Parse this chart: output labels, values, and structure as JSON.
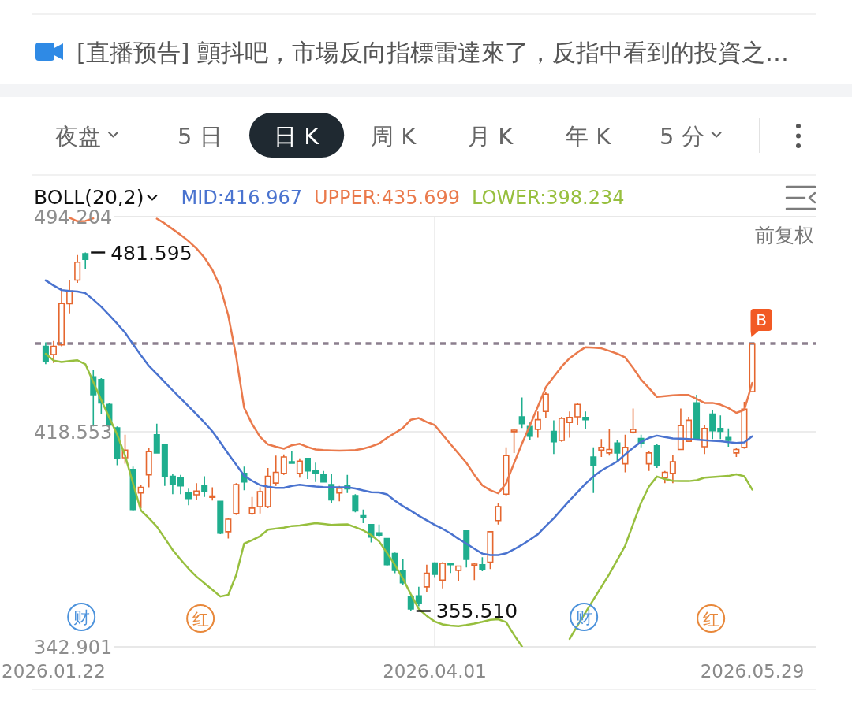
{
  "chart_data": {
    "type": "candlestick",
    "legend_title": "BOLL(20,2)",
    "legend": "top left",
    "grid": true,
    "categories": [
      null,
      "2026.01.22",
      null,
      null,
      null,
      null,
      null,
      null,
      null,
      null,
      null,
      null,
      null,
      null,
      null,
      null,
      null,
      null,
      null,
      null,
      null,
      null,
      null,
      null,
      null,
      null,
      null,
      null,
      null,
      null,
      null,
      null,
      null,
      null,
      null,
      null,
      null,
      null,
      null,
      null,
      null,
      null,
      null,
      null,
      null,
      null,
      null,
      null,
      null,
      "2026.04.01",
      null,
      null,
      null,
      null,
      null,
      null,
      null,
      null,
      null,
      null,
      null,
      null,
      null,
      null,
      null,
      null,
      null,
      null,
      null,
      null,
      null,
      null,
      null,
      null,
      null,
      null,
      null,
      null,
      null,
      null,
      null,
      null,
      null,
      null,
      null,
      null,
      null,
      null,
      null,
      "2026.05.29"
    ],
    "ohlc": [
      [
        448.6,
        450.0,
        442.3,
        443.2
      ],
      [
        445.7,
        450.5,
        442.7,
        448.6
      ],
      [
        449.1,
        469.0,
        448.6,
        463.7
      ],
      [
        463.6,
        471.9,
        460.2,
        468.0
      ],
      [
        471.9,
        480.7,
        470.9,
        478.2
      ],
      [
        481.2,
        481.595,
        475.8,
        479.2
      ],
      [
        437.9,
        440.3,
        420.4,
        431.6
      ],
      [
        436.9,
        437.4,
        424.8,
        428.7
      ],
      [
        428.2,
        428.6,
        420.4,
        420.9
      ],
      [
        419.9,
        420.4,
        406.8,
        409.2
      ],
      [
        409.4,
        417.5,
        407.3,
        412.1
      ],
      [
        405.3,
        406.3,
        390.7,
        391.2
      ],
      [
        397.0,
        400.0,
        391.7,
        399.0
      ],
      [
        403.4,
        412.9,
        399.0,
        411.6
      ],
      [
        417.5,
        421.4,
        411.1,
        411.1
      ],
      [
        414.1,
        414.1,
        399.5,
        402.9
      ],
      [
        402.9,
        403.8,
        396.6,
        400.0
      ],
      [
        402.4,
        403.4,
        396.6,
        399.5
      ],
      [
        397.0,
        398.5,
        392.7,
        395.1
      ],
      [
        396.4,
        400.5,
        394.6,
        397.7
      ],
      [
        399.5,
        402.9,
        395.6,
        397.5
      ],
      [
        395.6,
        399.0,
        394.4,
        395.9
      ],
      [
        394.1,
        394.1,
        382.5,
        382.9
      ],
      [
        383.4,
        388.3,
        381.0,
        387.8
      ],
      [
        389.8,
        400.5,
        389.3,
        400.0
      ],
      [
        403.9,
        406.3,
        398.0,
        400.9
      ],
      [
        389.8,
        395.6,
        389.3,
        391.7
      ],
      [
        392.2,
        399.0,
        389.8,
        397.5
      ],
      [
        392.2,
        405.8,
        391.7,
        402.9
      ],
      [
        400.5,
        410.2,
        399.5,
        404.3
      ],
      [
        403.9,
        410.6,
        403.4,
        409.7
      ],
      [
        408.0,
        411.6,
        407.3,
        407.5
      ],
      [
        403.9,
        409.2,
        402.4,
        408.2
      ],
      [
        409.2,
        409.2,
        401.9,
        404.8
      ],
      [
        404.8,
        407.7,
        400.9,
        403.9
      ],
      [
        403.6,
        404.8,
        400.9,
        400.9
      ],
      [
        400.0,
        403.9,
        393.6,
        394.6
      ],
      [
        397.0,
        399.5,
        394.1,
        398.7
      ],
      [
        399.5,
        403.4,
        397.0,
        398.5
      ],
      [
        396.1,
        396.6,
        390.2,
        390.7
      ],
      [
        389.0,
        391.2,
        386.4,
        388.3
      ],
      [
        385.9,
        385.9,
        379.6,
        381.5
      ],
      [
        383.0,
        385.9,
        381.5,
        382.2
      ],
      [
        381.0,
        381.2,
        371.3,
        371.8
      ],
      [
        375.7,
        376.1,
        368.8,
        369.8
      ],
      [
        369.8,
        373.7,
        364.5,
        365.4
      ],
      [
        360.6,
        361.1,
        355.51,
        356.2
      ],
      [
        360.8,
        364.0,
        357.2,
        358.2
      ],
      [
        364.0,
        371.8,
        362.0,
        368.8
      ],
      [
        372.4,
        372.7,
        367.4,
        368.4
      ],
      [
        366.4,
        372.7,
        363.5,
        372.3
      ],
      [
        372.3,
        372.5,
        368.9,
        371.8
      ],
      [
        369.8,
        371.5,
        365.9,
        371.3
      ],
      [
        383.7,
        383.7,
        370.8,
        373.7
      ],
      [
        371.5,
        372.3,
        366.4,
        372.0
      ],
      [
        371.8,
        374.4,
        369.5,
        370.1
      ],
      [
        372.7,
        383.4,
        370.3,
        383.4
      ],
      [
        387.3,
        393.6,
        385.9,
        392.2
      ],
      [
        396.6,
        413.1,
        396.1,
        410.2
      ],
      [
        418.6,
        419.4,
        411.1,
        419.1
      ],
      [
        423.8,
        430.6,
        419.9,
        421.4
      ],
      [
        420.4,
        421.8,
        415.5,
        417.0
      ],
      [
        419.4,
        425.7,
        416.5,
        422.8
      ],
      [
        425.7,
        432.5,
        423.3,
        431.8
      ],
      [
        418.7,
        422.6,
        410.7,
        415.0
      ],
      [
        415.5,
        423.8,
        415.0,
        423.3
      ],
      [
        421.8,
        425.7,
        416.5,
        423.6
      ],
      [
        423.8,
        428.6,
        420.9,
        428.2
      ],
      [
        423.6,
        425.7,
        419.4,
        422.8
      ],
      [
        409.7,
        413.1,
        397.0,
        406.8
      ],
      [
        412.1,
        416.0,
        409.7,
        413.1
      ],
      [
        411.1,
        419.4,
        410.2,
        412.3
      ],
      [
        414.6,
        415.5,
        408.2,
        411.1
      ],
      [
        407.3,
        417.5,
        404.3,
        413.1
      ],
      [
        418.4,
        426.7,
        417.9,
        419.4
      ],
      [
        416.2,
        417.5,
        413.1,
        414.6
      ],
      [
        407.3,
        411.6,
        404.8,
        411.1
      ],
      [
        413.6,
        414.3,
        405.8,
        406.8
      ],
      [
        402.4,
        404.8,
        400.5,
        404.3
      ],
      [
        403.9,
        410.4,
        400.5,
        408.0
      ],
      [
        412.3,
        426.7,
        412.1,
        420.7
      ],
      [
        415.2,
        423.8,
        415.0,
        422.6
      ],
      [
        428.7,
        431.6,
        416.0,
        416.0
      ],
      [
        413.3,
        420.9,
        410.7,
        419.7
      ],
      [
        424.8,
        426.2,
        416.0,
        418.9
      ],
      [
        419.7,
        424.3,
        416.0,
        418.7
      ],
      [
        416.5,
        419.7,
        413.3,
        415.5
      ],
      [
        411.1,
        412.9,
        409.7,
        412.3
      ],
      [
        413.1,
        429.1,
        412.6,
        426.5
      ],
      [
        432.7,
        449.6,
        432.7,
        449.6
      ]
    ],
    "colors": [
      "#1fae8e",
      "#e5672f",
      "#e5672f",
      "#e5672f",
      "#e5672f",
      "#1fae8e",
      "#1fae8e",
      "#1fae8e",
      "#1fae8e",
      "#1fae8e",
      "#e5672f",
      "#1fae8e",
      "#e5672f",
      "#e5672f",
      "#1fae8e",
      "#1fae8e",
      "#1fae8e",
      "#1fae8e",
      "#1fae8e",
      "#e5672f",
      "#1fae8e",
      "#e5672f",
      "#1fae8e",
      "#e5672f",
      "#e5672f",
      "#1fae8e",
      "#e5672f",
      "#e5672f",
      "#e5672f",
      "#e5672f",
      "#e5672f",
      "#1fae8e",
      "#e5672f",
      "#1fae8e",
      "#1fae8e",
      "#1fae8e",
      "#1fae8e",
      "#e5672f",
      "#1fae8e",
      "#1fae8e",
      "#1fae8e",
      "#1fae8e",
      "#1fae8e",
      "#1fae8e",
      "#1fae8e",
      "#1fae8e",
      "#1fae8e",
      "#1fae8e",
      "#e5672f",
      "#1fae8e",
      "#e5672f",
      "#1fae8e",
      "#e5672f",
      "#1fae8e",
      "#e5672f",
      "#1fae8e",
      "#e5672f",
      "#e5672f",
      "#e5672f",
      "#e5672f",
      "#1fae8e",
      "#1fae8e",
      "#e5672f",
      "#e5672f",
      "#1fae8e",
      "#e5672f",
      "#e5672f",
      "#e5672f",
      "#1fae8e",
      "#1fae8e",
      "#e5672f",
      "#e5672f",
      "#1fae8e",
      "#e5672f",
      "#e5672f",
      "#1fae8e",
      "#e5672f",
      "#1fae8e",
      "#e5672f",
      "#e5672f",
      "#e5672f",
      "#e5672f",
      "#1fae8e",
      "#e5672f",
      "#1fae8e",
      "#1fae8e",
      "#1fae8e",
      "#e5672f",
      "#e5672f",
      "#e5672f"
    ],
    "series": [
      {
        "name": "MID:416.967",
        "type": "line",
        "color": "#4a73cf",
        "values": [
          471.8,
          470.0,
          468.4,
          468.1,
          467.9,
          467.3,
          465.0,
          462.5,
          459.6,
          456.6,
          453.4,
          449.4,
          445.4,
          441.7,
          438.9,
          436.0,
          433.1,
          430.3,
          427.5,
          424.7,
          421.8,
          418.7,
          414.8,
          410.8,
          407.0,
          403.1,
          401.3,
          399.8,
          399.2,
          398.8,
          398.8,
          399.5,
          399.9,
          399.6,
          399.3,
          399.1,
          399.0,
          399.0,
          399.0,
          398.6,
          397.9,
          397.3,
          397.2,
          396.5,
          394.3,
          392.4,
          390.8,
          389.0,
          387.4,
          385.8,
          384.4,
          382.8,
          380.9,
          379.2,
          377.4,
          375.7,
          375.2,
          375.2,
          375.8,
          377.2,
          378.8,
          380.6,
          382.5,
          385.4,
          388.1,
          391.3,
          394.4,
          397.3,
          400.3,
          402.8,
          404.9,
          406.5,
          408.1,
          410.6,
          412.9,
          415.0,
          416.4,
          417.2,
          416.7,
          416.2,
          416.1,
          416.0,
          415.8,
          415.6,
          415.4,
          415.2,
          414.9,
          414.6,
          414.8,
          416.967
        ]
      },
      {
        "name": "UPPER:435.699",
        "type": "line",
        "color": "#ea7a4c",
        "values": [
          null,
          null,
          null,
          493.8,
          492.6,
          492.7,
          493.6,
          null,
          null,
          null,
          null,
          null,
          null,
          null,
          493.5,
          491.8,
          489.8,
          487.8,
          485.6,
          483.0,
          479.8,
          475.5,
          469.5,
          459.5,
          445.0,
          427.0,
          421.3,
          416.8,
          414.1,
          413.3,
          412.6,
          413.8,
          414.3,
          413.2,
          412.3,
          412.1,
          412.0,
          411.9,
          412.0,
          412.1,
          412.6,
          413.4,
          414.4,
          416.4,
          418.1,
          419.9,
          422.8,
          423.4,
          422.0,
          420.9,
          417.5,
          414.2,
          410.9,
          407.6,
          403.4,
          399.7,
          398.0,
          396.9,
          400.4,
          407.5,
          414.4,
          420.8,
          427.4,
          434.2,
          437.9,
          441.5,
          444.4,
          446.5,
          448.3,
          448.1,
          447.9,
          447.0,
          446.0,
          444.7,
          441.0,
          436.9,
          433.9,
          430.8,
          431.1,
          431.4,
          431.5,
          431.5,
          430.1,
          428.7,
          428.7,
          428.1,
          426.9,
          425.2,
          426.2,
          435.699
        ]
      },
      {
        "name": "LOWER:398.234",
        "type": "line",
        "color": "#97bf3e",
        "values": [
          446.0,
          443.6,
          443.1,
          443.4,
          443.7,
          442.3,
          436.0,
          429.7,
          423.6,
          417.6,
          410.2,
          400.4,
          390.9,
          388.2,
          385.2,
          381.1,
          377.0,
          373.6,
          370.4,
          367.6,
          365.3,
          363.0,
          360.6,
          361.2,
          368.2,
          379.2,
          380.4,
          381.8,
          384.1,
          384.5,
          384.8,
          385.4,
          385.6,
          386.0,
          386.4,
          386.1,
          385.8,
          385.9,
          386.0,
          385.0,
          383.9,
          382.2,
          380.0,
          375.9,
          371.7,
          366.9,
          361.4,
          356.2,
          353.8,
          351.8,
          350.8,
          350.4,
          350.2,
          350.6,
          351.1,
          351.7,
          352.4,
          352.6,
          351.6,
          347.1,
          343.0,
          null,
          null,
          null,
          null,
          null,
          345.7,
          350.4,
          355.0,
          359.5,
          364.0,
          368.5,
          373.4,
          378.5,
          386.1,
          393.6,
          399.3,
          402.8,
          401.9,
          401.3,
          401.2,
          401.2,
          401.5,
          402.4,
          402.6,
          402.8,
          403.0,
          403.6,
          402.9,
          398.234
        ]
      }
    ],
    "ylim": [
      342.901,
      494.204
    ],
    "yticks": [
      342.901,
      418.553,
      494.204
    ],
    "ref_lines": [
      {
        "axis": "y",
        "value": 449.6,
        "color": "#8c7f8e",
        "line_style": "dashed"
      }
    ],
    "annotations": [
      "[直播预告] 顫抖吧，市場反向指標雷達來了，反指中看到的投資之…",
      "夜盘",
      "5 日",
      "日 K",
      "周 K",
      "月 K",
      "年 K",
      "5 分",
      "前复权",
      "481.595",
      {
        "text": "B",
        "x": "2026.05.29",
        "y": 449.6
      },
      "355.510",
      "财",
      "红",
      "财",
      "红"
    ]
  }
}
